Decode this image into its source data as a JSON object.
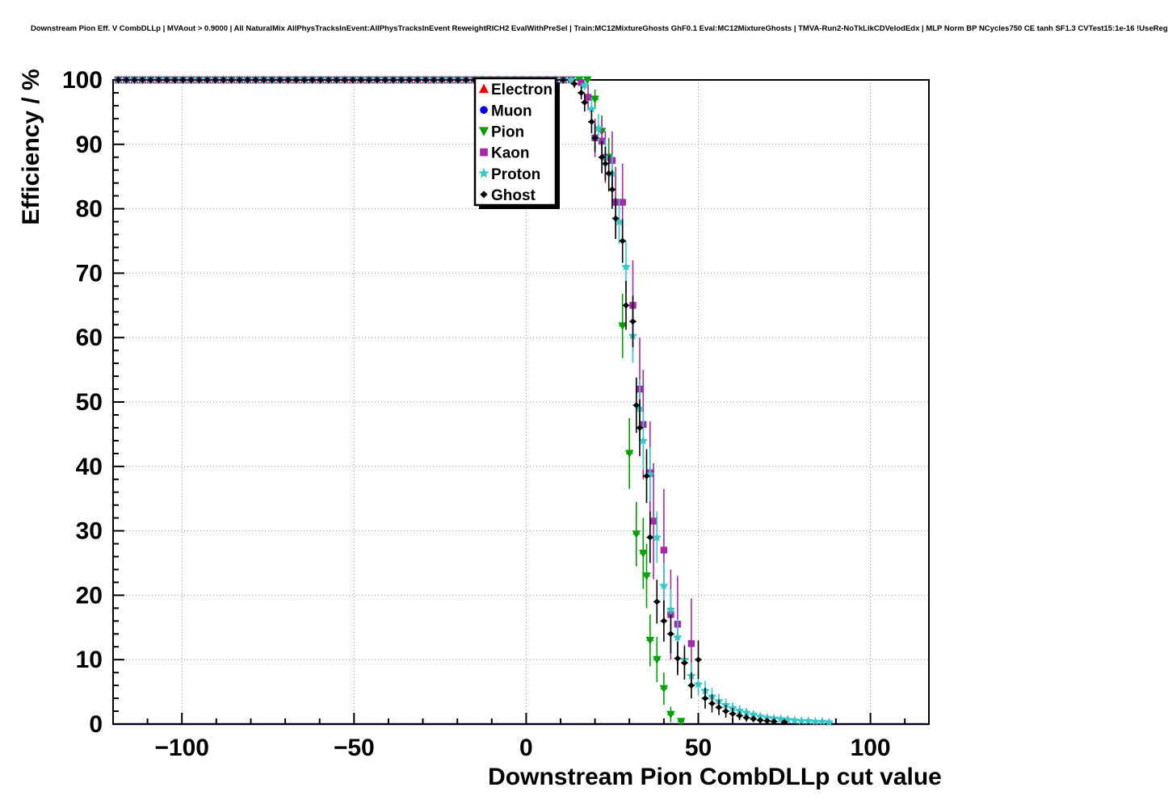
{
  "header": {
    "title": "Downstream Pion Eff. V CombDLLp | MVAout > 0.9000 | All NaturalMix AllPhysTracksInEvent:AllPhysTracksInEvent ReweightRICH2 EvalWithPreSel | Train:MC12MixtureGhosts GhF0.1 Eval:MC12MixtureGhosts | TMVA-Run2-NoTkLikCDVelodEdx | MLP Norm BP NCycles750 CE tanh SF1.3 CVTest15:1e-16 !UseReg"
  },
  "chart_data": {
    "type": "scatter",
    "title": "",
    "xlabel": "Downstream Pion CombDLLp cut value",
    "ylabel": "Efficiency / %",
    "xlim": [
      -120,
      117
    ],
    "ylim": [
      0,
      100
    ],
    "grid": true,
    "legend_position": "top-center",
    "xticks": {
      "values": [
        -100,
        -50,
        0,
        50,
        100
      ],
      "labels": [
        "−100",
        "−50",
        "0",
        "50",
        "100"
      ],
      "minor_step": 10
    },
    "yticks": {
      "values": [
        0,
        10,
        20,
        30,
        40,
        50,
        60,
        70,
        80,
        90,
        100
      ],
      "labels": [
        "0",
        "10",
        "20",
        "30",
        "40",
        "50",
        "60",
        "70",
        "80",
        "90",
        "100"
      ],
      "minor_step": 2
    },
    "baseline": {
      "y": 0,
      "color": "#2424cc"
    },
    "series": [
      {
        "name": "Electron",
        "marker": "triangle-up",
        "color": "#ee0000",
        "plateau": {
          "start": -118.5,
          "end": 12,
          "step": 2.35,
          "y": 100,
          "err": 0.15
        },
        "points": []
      },
      {
        "name": "Muon",
        "marker": "circle",
        "color": "#0000ee",
        "plateau": {
          "start": -118.5,
          "end": 12,
          "step": 2.35,
          "y": 100,
          "err": 0.15
        },
        "points": []
      },
      {
        "name": "Pion",
        "marker": "triangle-down",
        "color": "#00a000",
        "plateau": {
          "start": -118.5,
          "end": 18,
          "step": 2.35,
          "y": 100,
          "err": 0.15
        },
        "points": [
          [
            20,
            97.0,
            1.5
          ],
          [
            22,
            92.0,
            2.5
          ],
          [
            24,
            88.0,
            3.0
          ],
          [
            26,
            81.0,
            4.0
          ],
          [
            28,
            61.8,
            5.0
          ],
          [
            30,
            42.0,
            5.5
          ],
          [
            32,
            29.5,
            5.0
          ],
          [
            34,
            26.5,
            5.5
          ],
          [
            35,
            23.0,
            5.0
          ],
          [
            36,
            13.0,
            4.0
          ],
          [
            38,
            10.0,
            3.5
          ],
          [
            40,
            5.5,
            2.5
          ],
          [
            42,
            1.5,
            1.2
          ],
          [
            45,
            0.4,
            0.4
          ]
        ]
      },
      {
        "name": "Kaon",
        "marker": "square",
        "color": "#a52aa5",
        "plateau": {
          "start": -118.5,
          "end": 15,
          "step": 2.35,
          "y": 100,
          "err": 0.15
        },
        "points": [
          [
            16,
            99.6,
            0.8
          ],
          [
            18,
            97.3,
            2.0
          ],
          [
            20,
            91.0,
            3.0
          ],
          [
            22,
            90.5,
            3.5
          ],
          [
            23,
            88.0,
            4.0
          ],
          [
            25,
            87.5,
            4.5
          ],
          [
            26,
            81.0,
            5.5
          ],
          [
            28,
            81.0,
            6.0
          ],
          [
            31,
            65.0,
            7.0
          ],
          [
            33,
            52.0,
            8.0
          ],
          [
            34,
            46.5,
            8.5
          ],
          [
            36,
            39.0,
            8.0
          ],
          [
            37,
            31.5,
            9.0
          ],
          [
            40,
            27.0,
            9.5
          ],
          [
            42,
            17.0,
            7.0
          ],
          [
            44,
            15.5,
            7.5
          ],
          [
            48,
            12.5,
            7.0
          ]
        ]
      },
      {
        "name": "Proton",
        "marker": "star",
        "color": "#35c8c8",
        "plateau": {
          "start": -118.5,
          "end": 15,
          "step": 2.35,
          "y": 100,
          "err": 0.15
        },
        "points": [
          [
            17,
            99.2,
            0.8
          ],
          [
            19,
            95.5,
            1.8
          ],
          [
            21,
            92.5,
            2.2
          ],
          [
            23,
            88.0,
            2.8
          ],
          [
            25,
            85.5,
            3.0
          ],
          [
            27,
            78.0,
            3.5
          ],
          [
            29,
            71.0,
            4.0
          ],
          [
            31,
            60.3,
            4.2
          ],
          [
            33,
            49.0,
            4.5
          ],
          [
            34,
            44.0,
            4.5
          ],
          [
            36,
            38.8,
            4.2
          ],
          [
            38,
            29.0,
            4.0
          ],
          [
            40,
            21.5,
            3.5
          ],
          [
            42,
            17.8,
            3.2
          ],
          [
            44,
            13.5,
            2.8
          ],
          [
            46,
            10.0,
            2.4
          ],
          [
            48,
            7.5,
            2.0
          ],
          [
            50,
            6.2,
            1.8
          ],
          [
            52,
            5.2,
            1.5
          ],
          [
            54,
            4.3,
            1.3
          ],
          [
            56,
            3.6,
            1.1
          ],
          [
            58,
            3.0,
            1.0
          ],
          [
            60,
            2.5,
            0.9
          ],
          [
            62,
            2.1,
            0.8
          ],
          [
            64,
            1.8,
            0.7
          ],
          [
            66,
            1.5,
            0.6
          ],
          [
            68,
            1.2,
            0.5
          ],
          [
            70,
            1.0,
            0.5
          ],
          [
            72,
            0.9,
            0.4
          ],
          [
            74,
            0.8,
            0.4
          ],
          [
            76,
            0.7,
            0.3
          ],
          [
            78,
            0.6,
            0.3
          ],
          [
            80,
            0.5,
            0.3
          ],
          [
            82,
            0.5,
            0.2
          ],
          [
            84,
            0.4,
            0.2
          ],
          [
            86,
            0.4,
            0.2
          ],
          [
            88,
            0.3,
            0.2
          ]
        ]
      },
      {
        "name": "Ghost",
        "marker": "diamond",
        "color": "#000000",
        "plateau": {
          "start": -118.5,
          "end": 12,
          "step": 2.35,
          "y": 100,
          "err": 0.15
        },
        "points": [
          [
            14,
            99.4,
            0.6
          ],
          [
            16,
            98.0,
            1.0
          ],
          [
            17,
            96.5,
            1.4
          ],
          [
            19,
            93.5,
            1.8
          ],
          [
            20,
            91.0,
            2.2
          ],
          [
            22,
            88.0,
            2.5
          ],
          [
            23,
            87.0,
            2.6
          ],
          [
            24,
            85.5,
            2.8
          ],
          [
            25,
            83.0,
            3.0
          ],
          [
            26,
            78.5,
            3.2
          ],
          [
            28,
            75.0,
            3.4
          ],
          [
            29,
            65.0,
            3.8
          ],
          [
            31,
            62.5,
            4.0
          ],
          [
            32,
            49.5,
            4.3
          ],
          [
            33,
            46.0,
            4.4
          ],
          [
            35,
            38.5,
            4.2
          ],
          [
            36,
            29.0,
            4.0
          ],
          [
            38,
            19.0,
            3.4
          ],
          [
            40,
            16.0,
            3.2
          ],
          [
            42,
            14.0,
            3.0
          ],
          [
            44,
            10.2,
            2.6
          ],
          [
            46,
            9.5,
            2.6
          ],
          [
            48,
            6.0,
            2.0
          ],
          [
            50,
            10.0,
            3.0
          ],
          [
            52,
            4.0,
            1.6
          ],
          [
            54,
            3.2,
            1.4
          ],
          [
            56,
            2.6,
            1.2
          ],
          [
            58,
            2.0,
            1.0
          ],
          [
            60,
            1.6,
            0.9
          ],
          [
            62,
            1.3,
            0.7
          ],
          [
            64,
            1.0,
            0.6
          ],
          [
            66,
            0.8,
            0.5
          ],
          [
            68,
            0.6,
            0.4
          ],
          [
            70,
            0.5,
            0.4
          ],
          [
            72,
            0.4,
            0.3
          ],
          [
            75,
            0.3,
            0.2
          ]
        ]
      }
    ]
  }
}
